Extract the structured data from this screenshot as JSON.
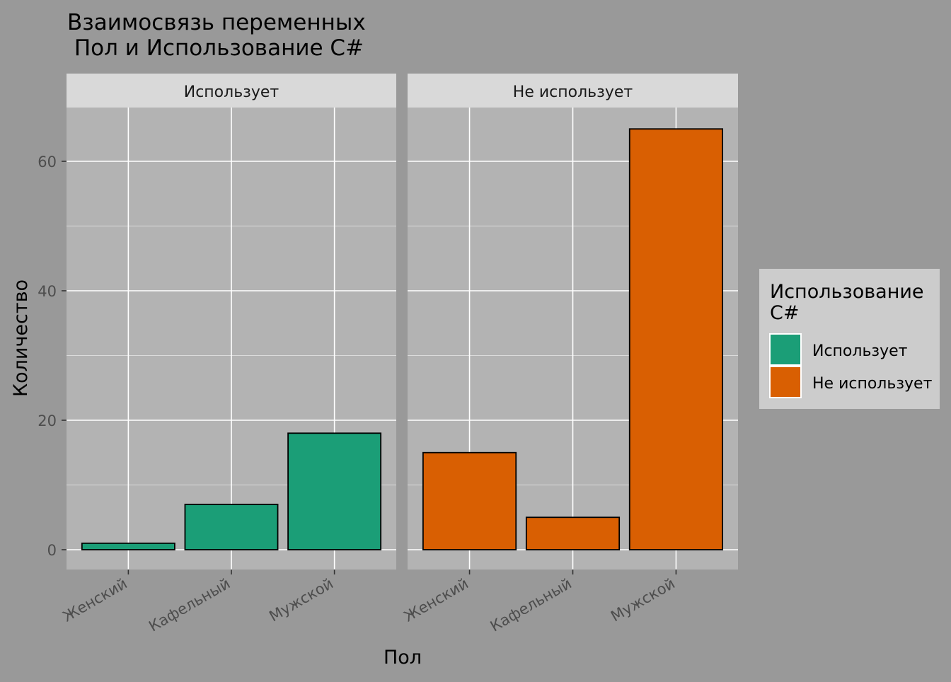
{
  "chart_data": {
    "type": "bar",
    "title": "Взаимосвязь переменных\n Пол и Использование С#",
    "xlabel": "Пол",
    "ylabel": "Количество",
    "categories": [
      "Женский",
      "Кафельный",
      "Мужской"
    ],
    "facets": [
      {
        "label": "Использует",
        "values": [
          1,
          7,
          18
        ]
      },
      {
        "label": "Не использует",
        "values": [
          15,
          5,
          65
        ]
      }
    ],
    "ylim": [
      0,
      68.25
    ],
    "yticks": [
      0,
      20,
      40,
      60
    ],
    "legend": {
      "title": "Использование\nС#",
      "placement": "right",
      "items": [
        {
          "label": "Использует",
          "color": "#1B9E77"
        },
        {
          "label": "Не использует",
          "color": "#D95F02"
        }
      ]
    },
    "grid": true
  },
  "colors": {
    "background": "#999999",
    "panel": "#B3B3B3",
    "strip": "#D9D9D9",
    "legend_bg": "#CCCCCC",
    "grid": "#FFFFFF",
    "axis_text": "#4D4D4D"
  }
}
